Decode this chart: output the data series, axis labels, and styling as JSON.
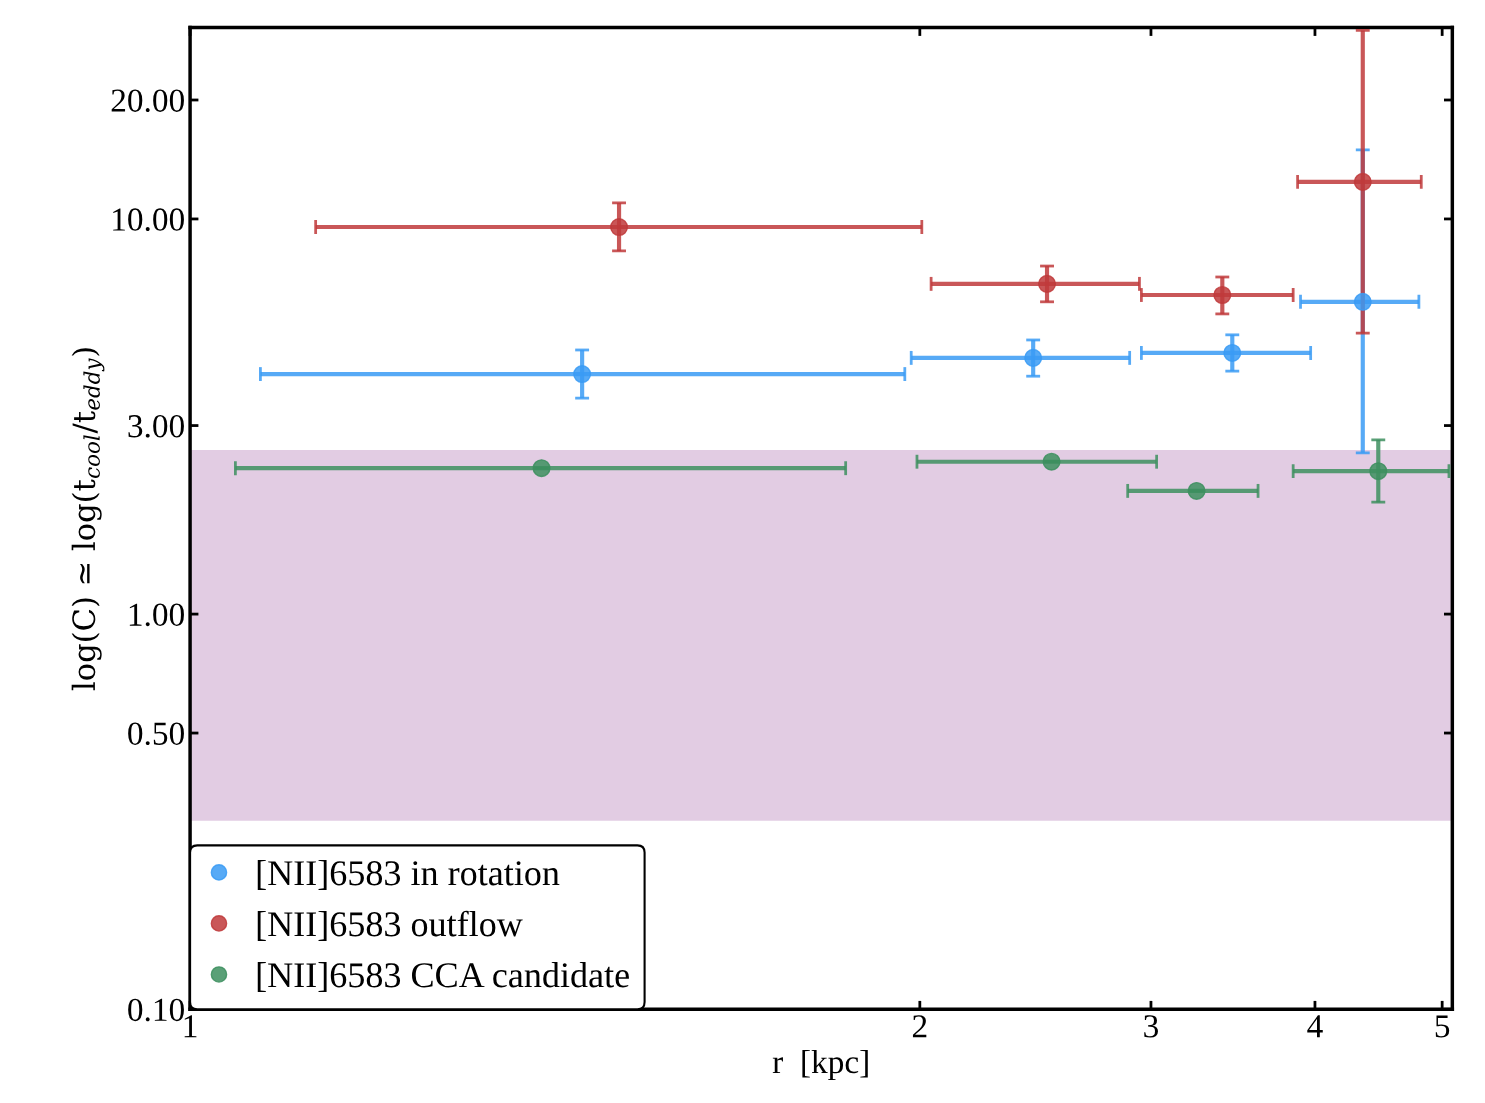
{
  "chart_data": {
    "type": "scatter",
    "xlabel": "r  [kpc]",
    "ylabel": "log(C) ≃ log(t$_{cool}$/t$_{eddy}$)",
    "log": "xy",
    "xlim": [
      0.556,
      5.09
    ],
    "ylim": [
      0.1,
      30.5
    ],
    "xticks": [
      {
        "value": 0.556,
        "label": "1"
      },
      2,
      3,
      4,
      5
    ],
    "yticks": [
      {
        "value": 0.1,
        "label": "0.10"
      },
      {
        "value": 0.5,
        "label": "0.50"
      },
      {
        "value": 1,
        "label": "1.00"
      },
      {
        "value": 3,
        "label": "3.00"
      },
      {
        "value": 10,
        "label": "10.00"
      },
      {
        "value": 20,
        "label": "20.00"
      }
    ],
    "grid": false,
    "legend": "bottom left",
    "marker": "circle",
    "bands": [
      {
        "axis": "y",
        "from": 0.3,
        "to": 2.6,
        "color": "#e2cce3"
      }
    ],
    "series": [
      {
        "name": "[NII]6583 in rotation",
        "color": "#3a9bf5",
        "x": [
          1.106,
          2.44,
          3.46,
          4.35
        ],
        "values": [
          4.05,
          4.45,
          4.58,
          6.17
        ],
        "xerrors": [
          [
            0.629,
            1.948
          ],
          [
            1.97,
            2.89
          ],
          [
            2.95,
            3.97
          ],
          [
            3.9,
            4.8
          ]
        ],
        "errors": [
          [
            3.52,
            4.66
          ],
          [
            4.0,
            4.94
          ],
          [
            4.12,
            5.09
          ],
          [
            2.56,
            14.95
          ]
        ]
      },
      {
        "name": "[NII]6583 outflow",
        "color": "#c0393b",
        "x": [
          1.18,
          2.5,
          3.4,
          4.35
        ],
        "values": [
          9.54,
          6.85,
          6.42,
          12.41
        ],
        "xerrors": [
          [
            0.693,
            2.007
          ],
          [
            2.04,
            2.94
          ],
          [
            2.95,
            3.85
          ],
          [
            3.88,
            4.82
          ]
        ],
        "errors": [
          [
            8.3,
            10.98
          ],
          [
            6.17,
            7.6
          ],
          [
            5.75,
            7.13
          ],
          [
            5.14,
            30.0
          ]
        ]
      },
      {
        "name": "[NII]6583 CCA candidate",
        "color": "#3d8f5f",
        "x": [
          1.03,
          2.52,
          3.25,
          4.47
        ],
        "values": [
          2.34,
          2.43,
          2.05,
          2.3
        ],
        "xerrors": [
          [
            0.602,
            1.756
          ],
          [
            1.99,
            3.03
          ],
          [
            2.88,
            3.62
          ],
          [
            3.85,
            5.06
          ]
        ],
        "errors": [
          null,
          null,
          null,
          [
            1.92,
            2.76
          ]
        ]
      }
    ]
  }
}
